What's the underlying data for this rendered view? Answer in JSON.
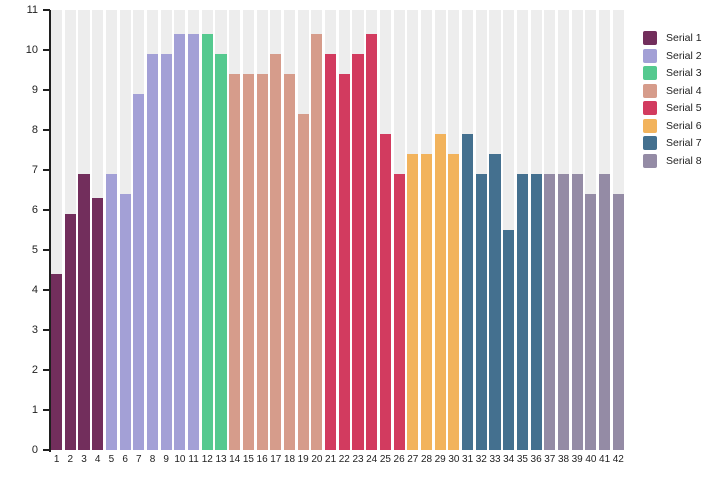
{
  "chart_data": {
    "type": "bar",
    "title": "",
    "xlabel": "",
    "ylabel": "",
    "ylim": [
      0,
      11
    ],
    "yticks": [
      "0",
      "1",
      "2",
      "3",
      "4",
      "5",
      "6",
      "7",
      "8",
      "9",
      "10",
      "11"
    ],
    "categories": [
      "1",
      "2",
      "3",
      "4",
      "5",
      "6",
      "7",
      "8",
      "9",
      "10",
      "11",
      "12",
      "13",
      "14",
      "15",
      "16",
      "17",
      "18",
      "19",
      "20",
      "21",
      "22",
      "23",
      "24",
      "25",
      "26",
      "27",
      "28",
      "29",
      "30",
      "31",
      "32",
      "33",
      "34",
      "35",
      "36",
      "37",
      "38",
      "39",
      "40",
      "41",
      "42"
    ],
    "grid": "striped-column-backgrounds",
    "legend_position": "top-right",
    "column_stripe_color": "#EDEDED",
    "axis_color": "#1F1F1F",
    "background_color": "#FFFFFF",
    "series": [
      {
        "name": "Serial 1",
        "color": "#722E5C",
        "categories": [
          "1",
          "2",
          "3",
          "4"
        ],
        "values": [
          4.4,
          5.9,
          6.9,
          6.3
        ]
      },
      {
        "name": "Serial 2",
        "color": "#A3A0D6",
        "categories": [
          "5",
          "6",
          "7",
          "8",
          "9",
          "10",
          "11"
        ],
        "values": [
          6.9,
          6.4,
          8.9,
          9.9,
          9.9,
          10.4,
          10.4
        ]
      },
      {
        "name": "Serial 3",
        "color": "#55C98F",
        "categories": [
          "12",
          "13"
        ],
        "values": [
          10.4,
          9.9
        ]
      },
      {
        "name": "Serial 4",
        "color": "#D69C8B",
        "categories": [
          "14",
          "15",
          "16",
          "17",
          "18",
          "19",
          "20"
        ],
        "values": [
          9.4,
          9.4,
          9.4,
          9.9,
          9.4,
          8.4,
          10.4
        ]
      },
      {
        "name": "Serial 5",
        "color": "#D23B5F",
        "categories": [
          "21",
          "22",
          "23",
          "24",
          "25",
          "26"
        ],
        "values": [
          9.9,
          9.4,
          9.9,
          10.4,
          7.9,
          6.9
        ]
      },
      {
        "name": "Serial 6",
        "color": "#F2B35C",
        "categories": [
          "27",
          "28",
          "29",
          "30"
        ],
        "values": [
          7.4,
          7.4,
          7.9,
          7.4
        ]
      },
      {
        "name": "Serial 7",
        "color": "#44708F",
        "categories": [
          "31",
          "32",
          "33",
          "34",
          "35",
          "36"
        ],
        "values": [
          7.9,
          6.9,
          7.4,
          5.5,
          6.9,
          6.9
        ]
      },
      {
        "name": "Serial 8",
        "color": "#948BA5",
        "categories": [
          "37",
          "38",
          "39",
          "40",
          "41",
          "42"
        ],
        "values": [
          6.9,
          6.9,
          6.9,
          6.4,
          6.9,
          6.4
        ]
      }
    ],
    "legend": [
      "Serial 1",
      "Serial 2",
      "Serial 3",
      "Serial 4",
      "Serial 5",
      "Serial 6",
      "Serial 7",
      "Serial 8"
    ]
  }
}
